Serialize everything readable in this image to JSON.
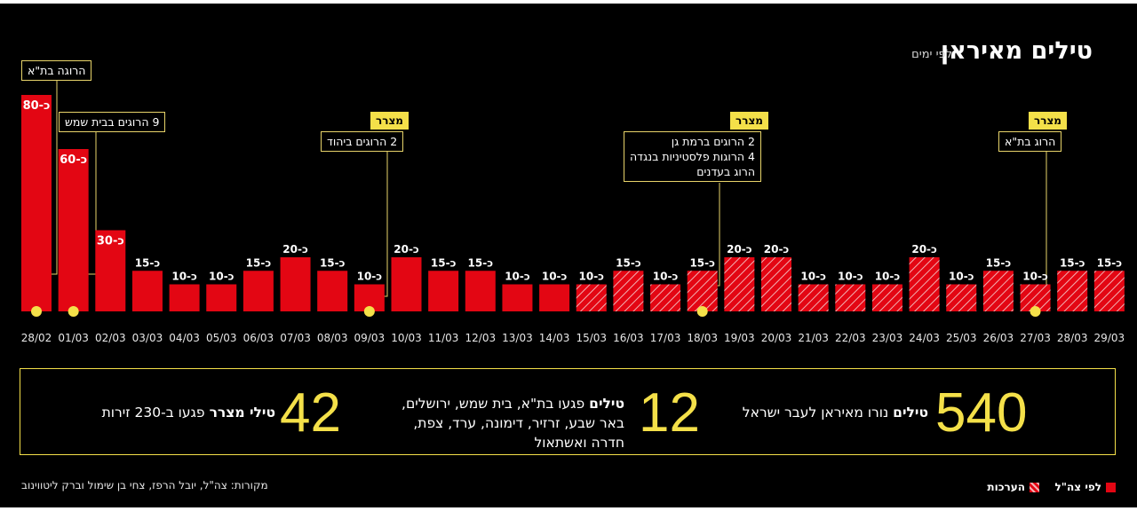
{
  "header": {
    "title": "טילים מאיראן",
    "subtitle": "לפי ימים"
  },
  "chart_data": {
    "type": "bar",
    "categories": [
      "28/02",
      "01/03",
      "02/03",
      "03/03",
      "04/03",
      "05/03",
      "06/03",
      "07/03",
      "08/03",
      "09/03",
      "10/03",
      "11/03",
      "12/03",
      "13/03",
      "14/03",
      "15/03",
      "16/03",
      "17/03",
      "18/03",
      "19/03",
      "20/03",
      "21/03",
      "22/03",
      "23/03",
      "24/03",
      "25/03",
      "26/03",
      "27/03",
      "28/03",
      "29/03"
    ],
    "values": [
      80,
      60,
      30,
      15,
      10,
      10,
      15,
      20,
      15,
      10,
      20,
      15,
      15,
      10,
      10,
      10,
      15,
      10,
      15,
      20,
      20,
      10,
      10,
      10,
      20,
      10,
      15,
      10,
      15,
      15
    ],
    "value_labels": [
      "כ-80",
      "כ-60",
      "כ-30",
      "כ-15",
      "כ-10",
      "כ-10",
      "כ-15",
      "כ-20",
      "כ-15",
      "כ-10",
      "כ-20",
      "כ-15",
      "כ-15",
      "כ-10",
      "כ-10",
      "כ-10",
      "כ-15",
      "כ-10",
      "כ-15",
      "כ-20",
      "כ-20",
      "כ-10",
      "כ-10",
      "כ-10",
      "כ-20",
      "כ-10",
      "כ-15",
      "כ-10",
      "כ-15",
      "כ-15"
    ],
    "estimated": [
      false,
      false,
      false,
      false,
      false,
      false,
      false,
      false,
      false,
      false,
      false,
      false,
      false,
      false,
      false,
      true,
      true,
      true,
      true,
      true,
      true,
      true,
      true,
      true,
      true,
      true,
      true,
      true,
      true,
      true
    ],
    "ylim": [
      0,
      80
    ],
    "grid": false,
    "legend_placement": "bottom-right",
    "colors": {
      "bar": "#e30613",
      "stripe": "#f2b0b3",
      "marker": "#f4e049",
      "background": "#000000"
    }
  },
  "annotations": [
    {
      "date": "28/02",
      "tag": "",
      "lines": [
        "הרוגה בת\"א"
      ]
    },
    {
      "date": "01/03",
      "tag": "",
      "lines": [
        "9 הרוגים בבית שמש"
      ]
    },
    {
      "date": "09/03",
      "tag": "מצרר",
      "lines": [
        "2 הרוגים ביהוד"
      ]
    },
    {
      "date": "18/03",
      "tag": "מצרר",
      "lines": [
        "2 הרוגים ברמת גן",
        "4 הרוגות פלסטיניות בנגדה",
        "הרוג בעדנים"
      ]
    },
    {
      "date": "27/03",
      "tag": "מצרר",
      "lines": [
        "הרוג בת\"א"
      ]
    }
  ],
  "summary": {
    "launched": {
      "number": "540",
      "bold": "טילים",
      "text": "נורו מאיראן לעבר ישראל"
    },
    "hit": {
      "number": "12",
      "bold": "טילים",
      "line1": "פגעו בת\"א, בית שמש, ירושלים,",
      "line2": "באר שבע, זרזיר, דימונה, ערד, צפת,",
      "line3": "חדרה ואשתאול"
    },
    "cluster": {
      "number": "42",
      "bold": "טילי מצרר",
      "text": "פגעו ב-230 זירות"
    }
  },
  "footer": {
    "sources": "מקורות: צה\"ל, יובל הרפז, צחי בן שימול וברק ליטווינוב",
    "legend_idf": "לפי צה\"ל",
    "legend_est": "הערכות"
  }
}
